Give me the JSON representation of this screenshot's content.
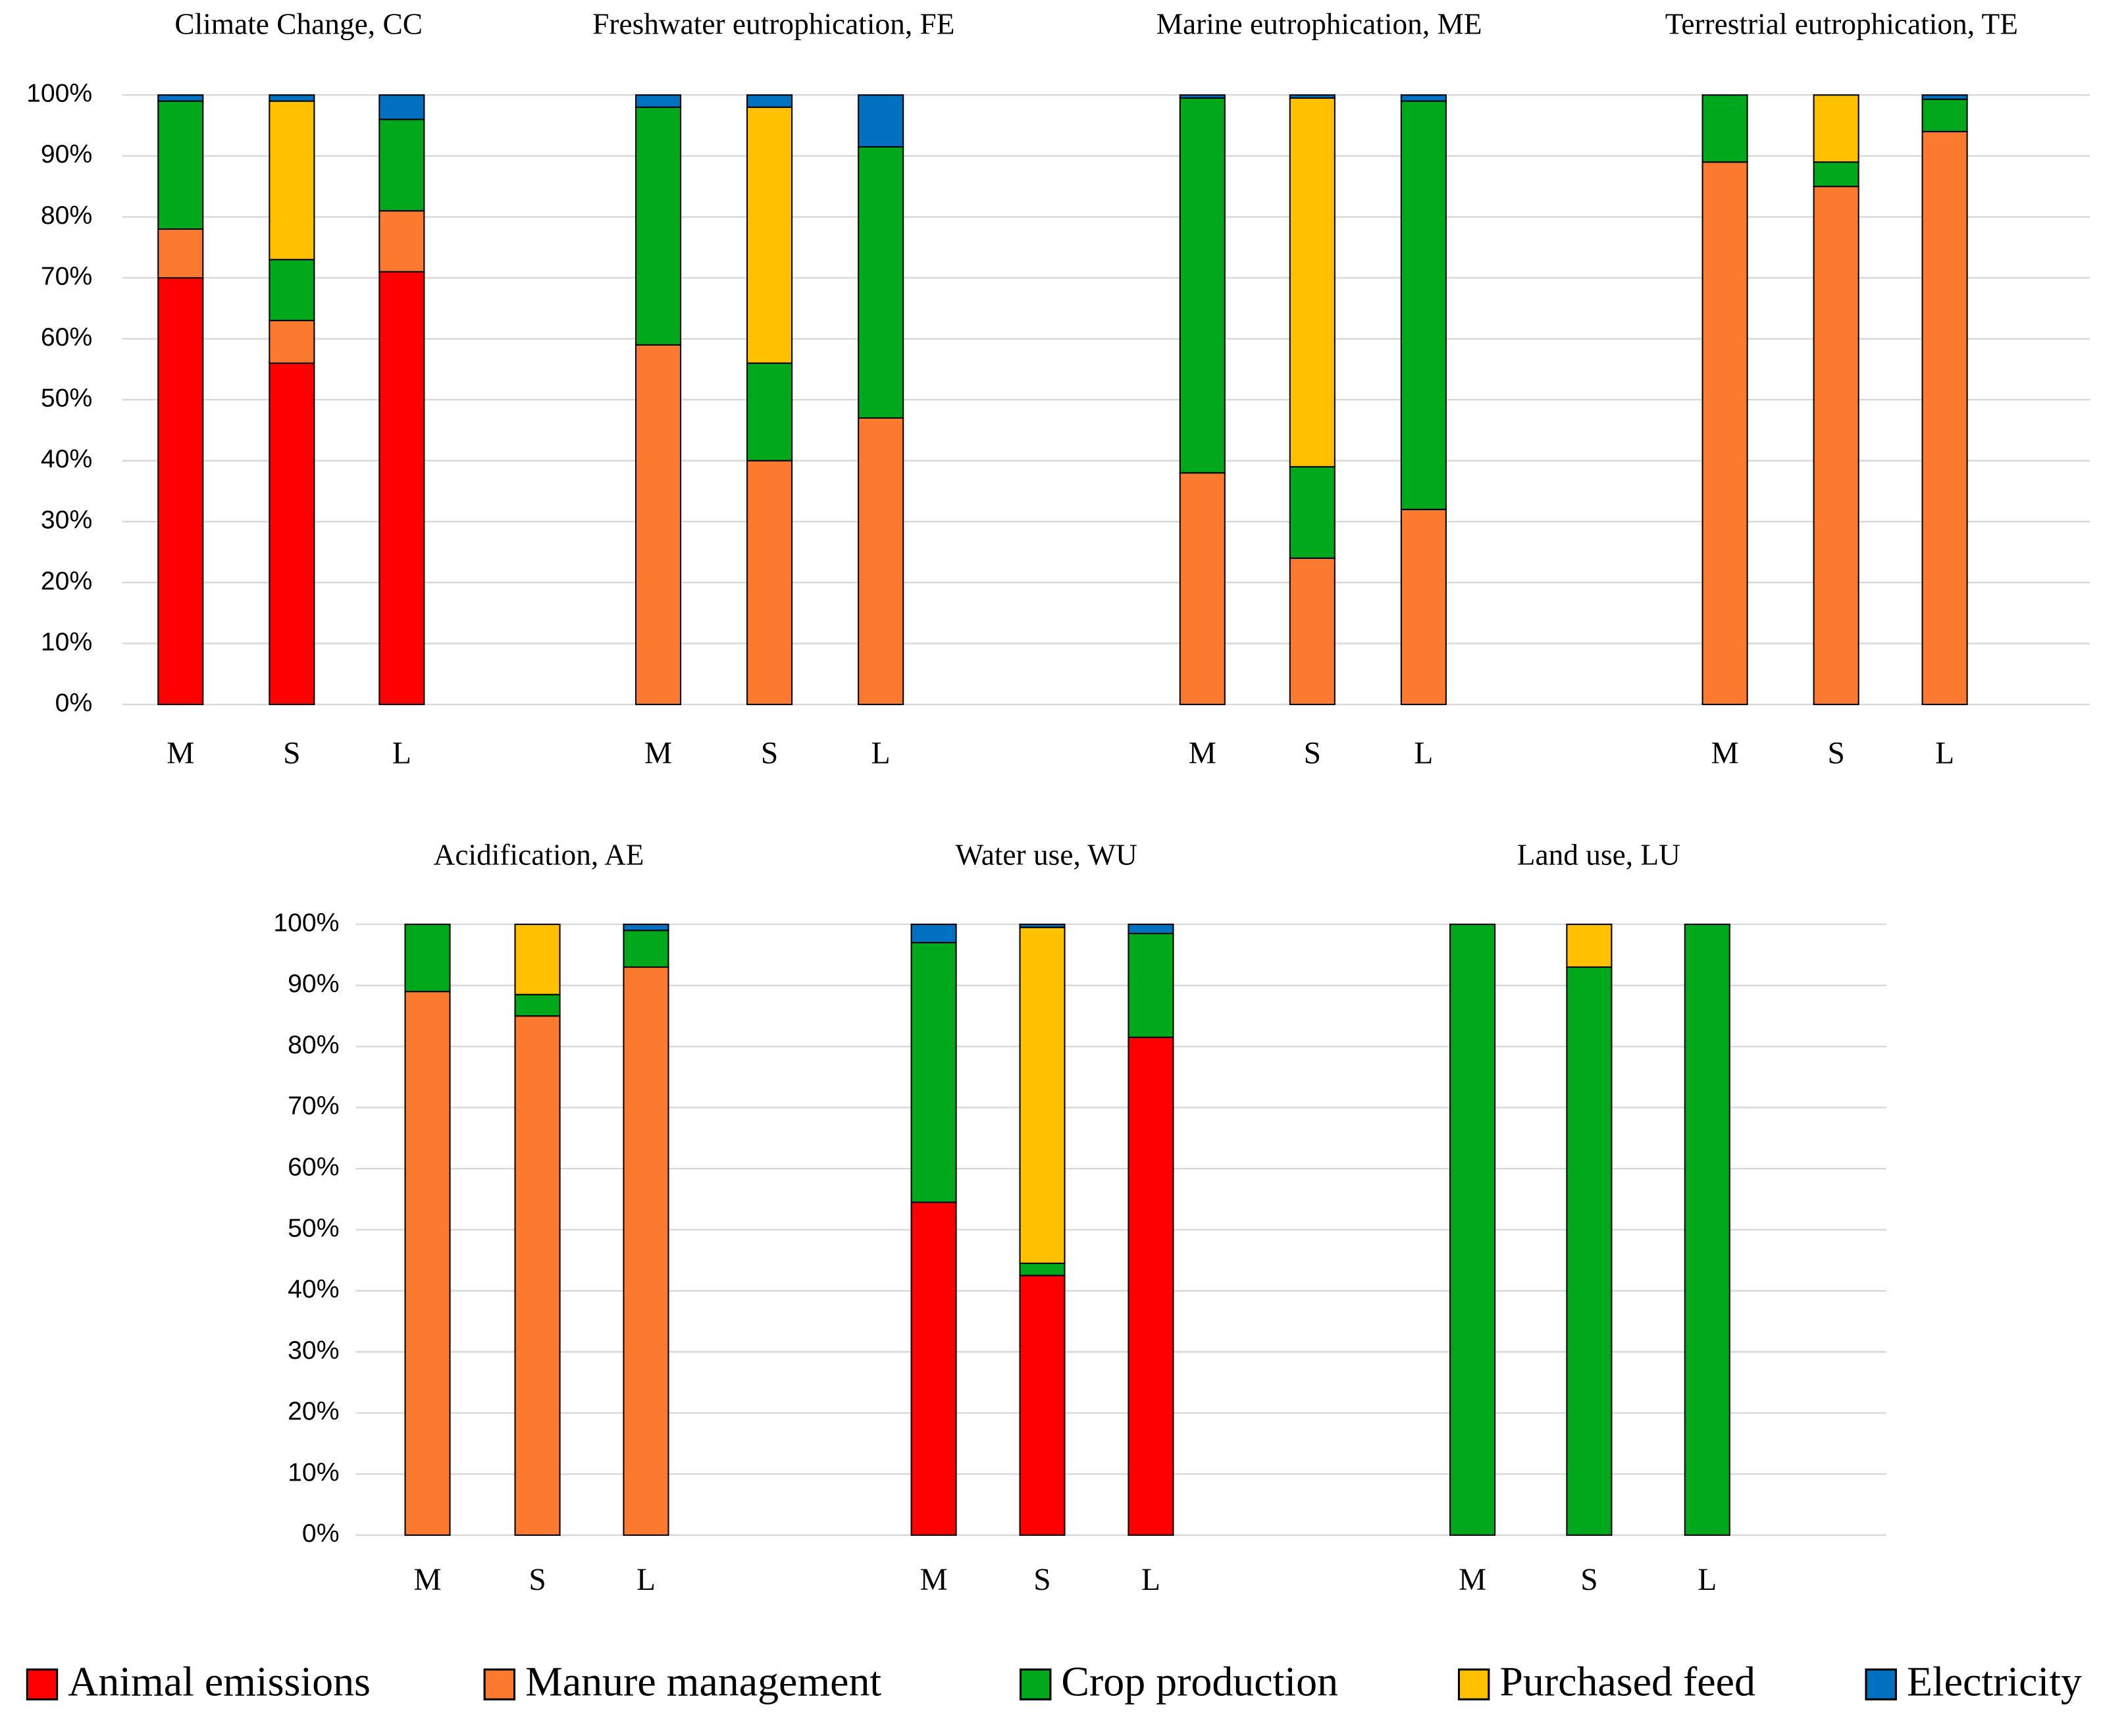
{
  "chart_data": [
    {
      "type": "bar",
      "stacked": true,
      "title": "Climate Change, CC",
      "categories": [
        "M",
        "S",
        "L"
      ],
      "series": [
        {
          "values": [
            70,
            56,
            71
          ]
        },
        {
          "values": [
            8,
            7,
            10
          ]
        },
        {
          "values": [
            21,
            10,
            15
          ]
        },
        {
          "values": [
            0,
            26,
            0
          ]
        },
        {
          "values": [
            1,
            1,
            4
          ]
        }
      ],
      "ylim": [
        0,
        100
      ],
      "grid": true,
      "yticks": [
        {
          "value": 0,
          "label": "0%"
        },
        {
          "value": 10,
          "label": "10%"
        },
        {
          "value": 20,
          "label": "20%"
        },
        {
          "value": 30,
          "label": "30%"
        },
        {
          "value": 40,
          "label": "40%"
        },
        {
          "value": 50,
          "label": "50%"
        },
        {
          "value": 60,
          "label": "60%"
        },
        {
          "value": 70,
          "label": "70%"
        },
        {
          "value": 80,
          "label": "80%"
        },
        {
          "value": 90,
          "label": "90%"
        },
        {
          "value": 100,
          "label": "100%"
        }
      ]
    },
    {
      "type": "bar",
      "stacked": true,
      "title": "Freshwater eutrophication, FE",
      "categories": [
        "M",
        "S",
        "L"
      ],
      "series": [
        {
          "values": [
            0,
            0,
            0
          ]
        },
        {
          "values": [
            59,
            40,
            47
          ]
        },
        {
          "values": [
            39,
            16,
            44.5
          ]
        },
        {
          "values": [
            0,
            42,
            0
          ]
        },
        {
          "values": [
            2,
            2,
            8.5
          ]
        }
      ],
      "ylim": [
        0,
        100
      ]
    },
    {
      "type": "bar",
      "stacked": true,
      "title": "Marine eutrophication, ME",
      "categories": [
        "M",
        "S",
        "L"
      ],
      "series": [
        {
          "values": [
            0,
            0,
            0
          ]
        },
        {
          "values": [
            38,
            24,
            32
          ]
        },
        {
          "values": [
            61.5,
            15,
            67
          ]
        },
        {
          "values": [
            0,
            60.5,
            0
          ]
        },
        {
          "values": [
            0.5,
            0.5,
            1
          ]
        }
      ],
      "ylim": [
        0,
        100
      ]
    },
    {
      "type": "bar",
      "stacked": true,
      "title": "Terrestrial eutrophication, TE",
      "categories": [
        "M",
        "S",
        "L"
      ],
      "series": [
        {
          "values": [
            0,
            0,
            0
          ]
        },
        {
          "values": [
            89,
            85,
            94
          ]
        },
        {
          "values": [
            11,
            4,
            5.3
          ]
        },
        {
          "values": [
            0,
            11,
            0
          ]
        },
        {
          "values": [
            0,
            0,
            0.7
          ]
        }
      ],
      "ylim": [
        0,
        100
      ]
    },
    {
      "type": "bar",
      "stacked": true,
      "title": "Acidification, AE",
      "categories": [
        "M",
        "S",
        "L"
      ],
      "series": [
        {
          "values": [
            0,
            0,
            0
          ]
        },
        {
          "values": [
            89,
            85,
            93
          ]
        },
        {
          "values": [
            11,
            3.5,
            6
          ]
        },
        {
          "values": [
            0,
            11.5,
            0
          ]
        },
        {
          "values": [
            0,
            0,
            1
          ]
        }
      ],
      "ylim": [
        0,
        100
      ],
      "grid": true,
      "yticks": [
        {
          "value": 0,
          "label": "0%"
        },
        {
          "value": 10,
          "label": "10%"
        },
        {
          "value": 20,
          "label": "20%"
        },
        {
          "value": 30,
          "label": "30%"
        },
        {
          "value": 40,
          "label": "40%"
        },
        {
          "value": 50,
          "label": "50%"
        },
        {
          "value": 60,
          "label": "60%"
        },
        {
          "value": 70,
          "label": "70%"
        },
        {
          "value": 80,
          "label": "80%"
        },
        {
          "value": 90,
          "label": "90%"
        },
        {
          "value": 100,
          "label": "100%"
        }
      ]
    },
    {
      "type": "bar",
      "stacked": true,
      "title": "Water use, WU",
      "categories": [
        "M",
        "S",
        "L"
      ],
      "series": [
        {
          "values": [
            54.5,
            42.5,
            81.5
          ]
        },
        {
          "values": [
            0,
            0,
            0
          ]
        },
        {
          "values": [
            42.5,
            2,
            17
          ]
        },
        {
          "values": [
            0,
            55,
            0
          ]
        },
        {
          "values": [
            3,
            0.5,
            1.5
          ]
        }
      ],
      "ylim": [
        0,
        100
      ]
    },
    {
      "type": "bar",
      "stacked": true,
      "title": "Land use, LU",
      "categories": [
        "M",
        "S",
        "L"
      ],
      "series": [
        {
          "values": [
            0,
            0,
            0
          ]
        },
        {
          "values": [
            0,
            0,
            0
          ]
        },
        {
          "values": [
            100,
            93,
            100
          ]
        },
        {
          "values": [
            0,
            7,
            0
          ]
        },
        {
          "values": [
            0,
            0,
            0
          ]
        }
      ],
      "ylim": [
        0,
        100
      ]
    }
  ],
  "legend": {
    "position": "bottom",
    "entries": [
      {
        "name": "Animal emissions",
        "color": "#ff0000"
      },
      {
        "name": "Manure management",
        "color": "#fb7a2f"
      },
      {
        "name": "Crop production",
        "color": "#00a81b"
      },
      {
        "name": "Purchased feed",
        "color": "#ffc000"
      },
      {
        "name": "Electricity",
        "color": "#0070c0"
      }
    ]
  }
}
